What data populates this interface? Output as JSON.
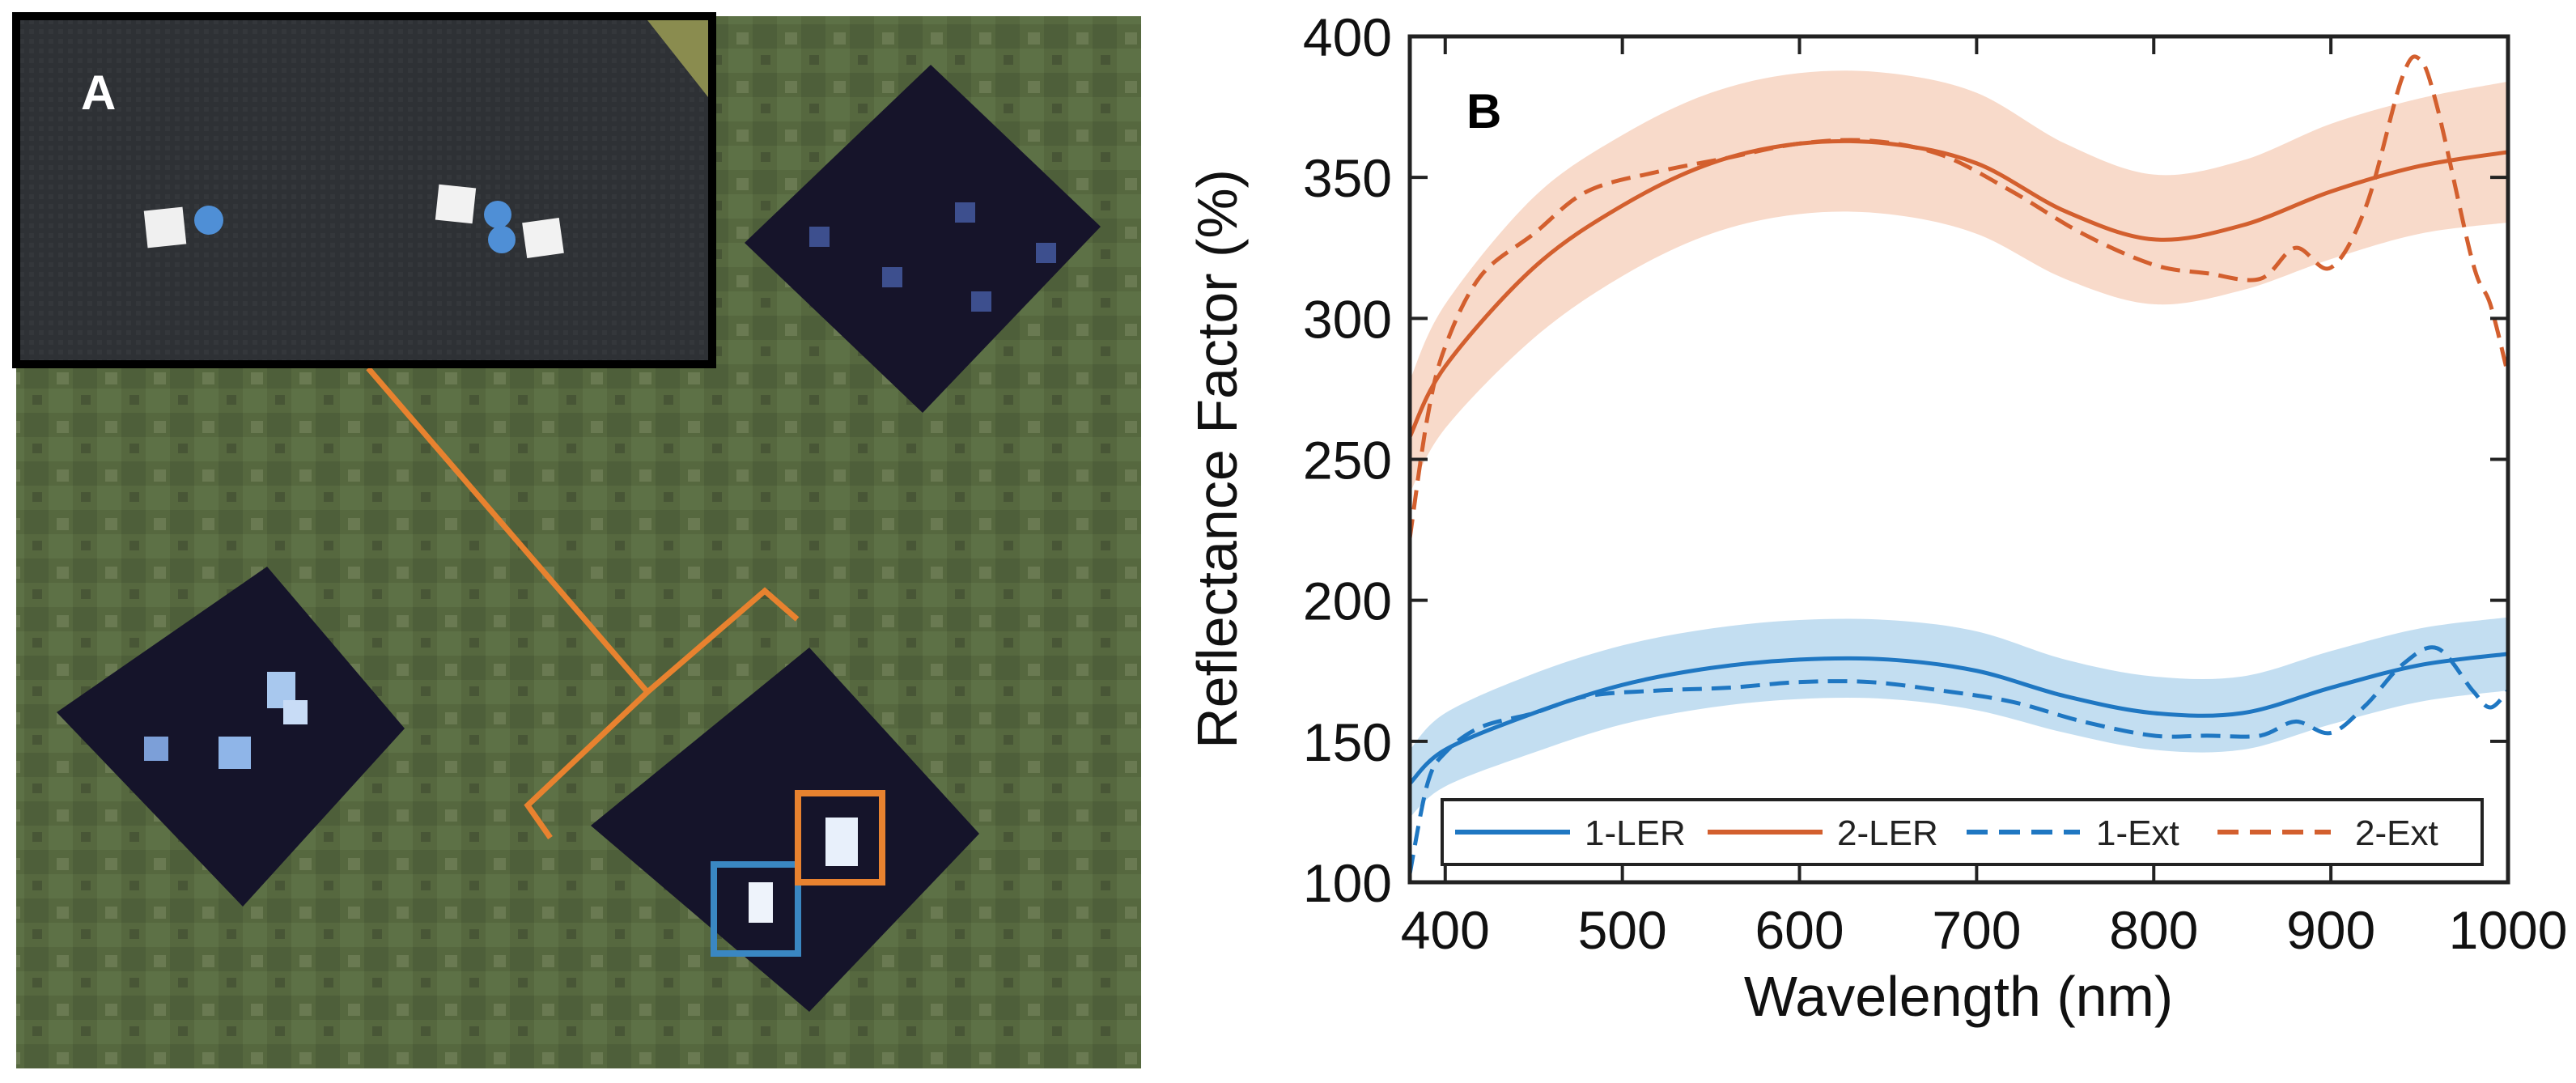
{
  "panel_a": {
    "label": "A",
    "description_colors": {
      "grass": "#55683f",
      "tarp": "#151423",
      "inset_mat": "#2c2f33",
      "bracket": "#e8822f",
      "box_blue": "#3a87c2",
      "box_orange": "#e8822f"
    }
  },
  "panel_b_label": "B",
  "chart_data": {
    "type": "line",
    "xlabel": "Wavelength (nm)",
    "ylabel": "Reflectance Factor (%)",
    "xlim": [
      380,
      1000
    ],
    "ylim": [
      100,
      400
    ],
    "xticks": [
      "400",
      "500",
      "600",
      "700",
      "800",
      "900",
      "1000"
    ],
    "yticks": [
      "100",
      "150",
      "200",
      "250",
      "300",
      "350",
      "400"
    ],
    "legend": {
      "position": "bottom",
      "entries": [
        "1-LER",
        "2-LER",
        "1-Ext",
        "2-Ext"
      ]
    },
    "series": [
      {
        "name": "1-LER",
        "style": "solid",
        "color": "#1f77c2",
        "band_color": "#b9d8ef",
        "x": [
          380,
          400,
          450,
          500,
          550,
          600,
          650,
          700,
          750,
          800,
          850,
          900,
          950,
          1000
        ],
        "values": [
          135,
          147,
          160,
          170,
          176,
          179,
          179,
          175,
          166,
          160,
          160,
          169,
          177,
          181
        ],
        "band_halfwidth": [
          12,
          13,
          14,
          14,
          14,
          14,
          14,
          14,
          13,
          13,
          13,
          13,
          13,
          13
        ]
      },
      {
        "name": "2-LER",
        "style": "solid",
        "color": "#d35f2e",
        "band_color": "#f7d3c1",
        "x": [
          380,
          400,
          450,
          500,
          550,
          600,
          650,
          700,
          750,
          800,
          850,
          900,
          950,
          1000
        ],
        "values": [
          258,
          283,
          318,
          340,
          355,
          362,
          362,
          355,
          338,
          328,
          333,
          345,
          354,
          359
        ],
        "band_halfwidth": [
          20,
          22,
          25,
          25,
          25,
          25,
          25,
          25,
          24,
          23,
          23,
          24,
          24,
          25
        ]
      },
      {
        "name": "1-Ext",
        "style": "dashed",
        "color": "#1f77c2",
        "x": [
          380,
          390,
          400,
          420,
          450,
          480,
          520,
          560,
          600,
          640,
          680,
          720,
          760,
          800,
          830,
          860,
          880,
          900,
          920,
          940,
          960,
          980,
          990,
          1000
        ],
        "values": [
          103,
          135,
          146,
          155,
          160,
          166,
          168,
          169,
          171,
          171,
          168,
          164,
          157,
          152,
          152,
          152,
          157,
          153,
          163,
          177,
          183,
          168,
          162,
          168
        ]
      },
      {
        "name": "2-Ext",
        "style": "dashed",
        "color": "#d35f2e",
        "x": [
          380,
          390,
          400,
          420,
          450,
          480,
          520,
          560,
          600,
          640,
          680,
          720,
          760,
          800,
          830,
          860,
          880,
          900,
          920,
          940,
          950,
          960,
          980,
          990,
          1000
        ],
        "values": [
          222,
          265,
          290,
          315,
          330,
          345,
          352,
          357,
          362,
          363,
          358,
          345,
          330,
          319,
          316,
          314,
          325,
          318,
          340,
          385,
          392,
          375,
          320,
          305,
          280
        ]
      }
    ]
  }
}
